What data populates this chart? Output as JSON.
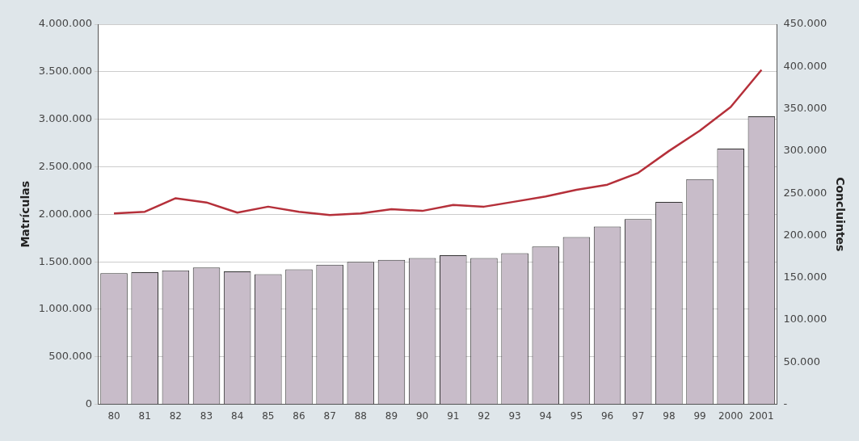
{
  "chart_data": {
    "type": "bar",
    "categories": [
      "80",
      "81",
      "82",
      "83",
      "84",
      "85",
      "86",
      "87",
      "88",
      "89",
      "90",
      "91",
      "92",
      "93",
      "94",
      "95",
      "96",
      "97",
      "98",
      "99",
      "2000",
      "2001"
    ],
    "series": [
      {
        "name": null,
        "axis": "y",
        "color": "#c8bcc9",
        "values": [
          1380000,
          1390000,
          1410000,
          1440000,
          1400000,
          1370000,
          1420000,
          1470000,
          1500000,
          1520000,
          1540000,
          1570000,
          1540000,
          1590000,
          1660000,
          1760000,
          1870000,
          1950000,
          2130000,
          2370000,
          2690000,
          3030000
        ]
      },
      {
        "name": null,
        "type": "line",
        "axis": "y2",
        "color": "#b5303a",
        "values": [
          226000,
          228000,
          244000,
          239000,
          227000,
          234000,
          228000,
          224000,
          226000,
          231000,
          229000,
          236000,
          234000,
          240000,
          246000,
          254000,
          260000,
          274000,
          300000,
          324000,
          352000,
          396000
        ]
      }
    ],
    "ylabel": "Matrículas",
    "y2label": "Concluintes",
    "ylim": [
      0,
      4000000
    ],
    "yticks": [
      {
        "value": 0,
        "label": "0"
      },
      {
        "value": 500000,
        "label": "500.000"
      },
      {
        "value": 1000000,
        "label": "1.000.000"
      },
      {
        "value": 1500000,
        "label": "1.500.000"
      },
      {
        "value": 2000000,
        "label": "2.000.000"
      },
      {
        "value": 2500000,
        "label": "2.500.000"
      },
      {
        "value": 3000000,
        "label": "3.000.000"
      },
      {
        "value": 3500000,
        "label": "3.500.000"
      },
      {
        "value": 4000000,
        "label": "4.000.000"
      }
    ],
    "y2lim": [
      0,
      450000
    ],
    "y2ticks": [
      {
        "value": 0,
        "label": "-"
      },
      {
        "value": 50000,
        "label": "50.000"
      },
      {
        "value": 100000,
        "label": "100.000"
      },
      {
        "value": 150000,
        "label": "150.000"
      },
      {
        "value": 200000,
        "label": "200.000"
      },
      {
        "value": 250000,
        "label": "250.000"
      },
      {
        "value": 300000,
        "label": "300.000"
      },
      {
        "value": 350000,
        "label": "350.000"
      },
      {
        "value": 400000,
        "label": "400.000"
      },
      {
        "value": 450000,
        "label": "450.000"
      }
    ],
    "grid": "y",
    "legend": false,
    "marker": "none",
    "line_style": "solid"
  }
}
